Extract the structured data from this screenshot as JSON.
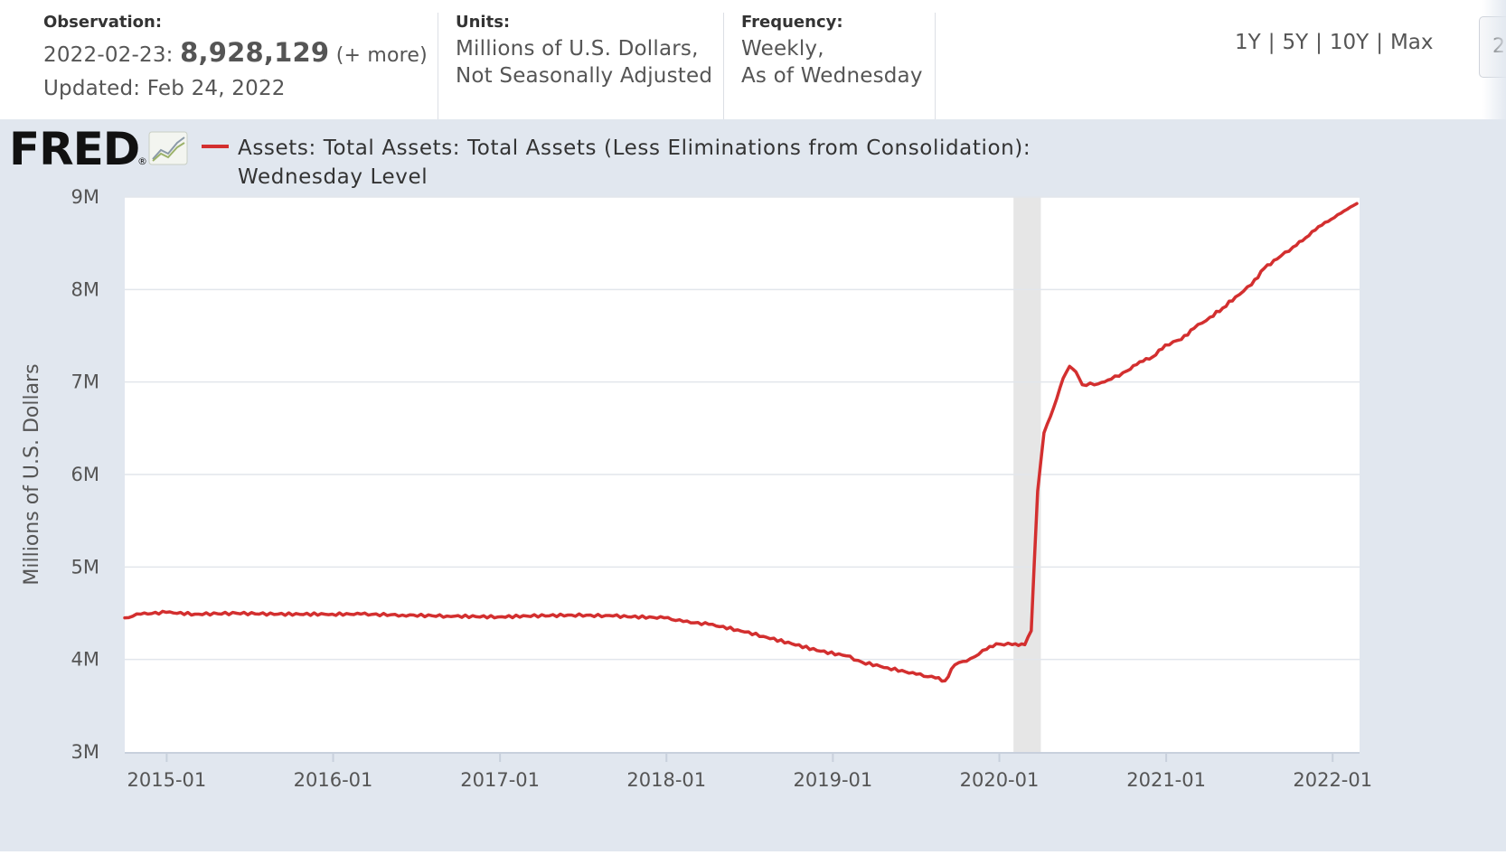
{
  "header": {
    "observation": {
      "label": "Observation:",
      "date_prefix": "2022-02-23:",
      "value": "8,928,129",
      "more": "(+ more)",
      "updated": "Updated: Feb 24, 2022"
    },
    "units": {
      "label": "Units:",
      "line1": "Millions of U.S. Dollars,",
      "line2": "Not Seasonally Adjusted"
    },
    "frequency": {
      "label": "Frequency:",
      "line1": "Weekly,",
      "line2": "As of Wednesday"
    },
    "ranges": [
      "1Y",
      "5Y",
      "10Y",
      "Max"
    ],
    "edge_button_text": "2"
  },
  "brand": {
    "logo_text": "FRED",
    "logo_icon": "chart-line-icon",
    "reg_mark": "®"
  },
  "colors": {
    "series": "#d32f2f",
    "chart_bg": "#e1e7ef",
    "plot_bg": "#ffffff",
    "recession": "#e6e6e6",
    "grid": "#e2e6ec"
  },
  "chart_data": {
    "type": "line",
    "title": "",
    "legend_text_line1": "Assets: Total Assets: Total Assets (Less Eliminations from Consolidation):",
    "legend_text_line2": "Wednesday Level",
    "ylabel": "Millions of U.S. Dollars",
    "xlabel": "",
    "xlim": [
      "2014-10-01",
      "2022-03-01"
    ],
    "ylim": [
      3,
      9
    ],
    "y_unit": "millions (M)",
    "y_ticks": [
      {
        "value": 3,
        "label": "3M"
      },
      {
        "value": 4,
        "label": "4M"
      },
      {
        "value": 5,
        "label": "5M"
      },
      {
        "value": 6,
        "label": "6M"
      },
      {
        "value": 7,
        "label": "7M"
      },
      {
        "value": 8,
        "label": "8M"
      },
      {
        "value": 9,
        "label": "9M"
      }
    ],
    "x_ticks": [
      {
        "date": "2015-01-01",
        "label": "2015-01"
      },
      {
        "date": "2016-01-01",
        "label": "2016-01"
      },
      {
        "date": "2017-01-01",
        "label": "2017-01"
      },
      {
        "date": "2018-01-01",
        "label": "2018-01"
      },
      {
        "date": "2019-01-01",
        "label": "2019-01"
      },
      {
        "date": "2020-01-01",
        "label": "2020-01"
      },
      {
        "date": "2021-01-01",
        "label": "2021-01"
      },
      {
        "date": "2022-01-01",
        "label": "2022-01"
      }
    ],
    "recession": {
      "start": "2020-02-01",
      "end": "2020-04-01"
    },
    "grid": true,
    "series": [
      {
        "name": "Assets: Total Assets: Total Assets (Less Eliminations from Consolidation): Wednesday Level",
        "points": [
          [
            "2014-10-01",
            4.45
          ],
          [
            "2014-11-05",
            4.49
          ],
          [
            "2014-12-31",
            4.51
          ],
          [
            "2015-03-04",
            4.49
          ],
          [
            "2015-06-03",
            4.5
          ],
          [
            "2015-09-02",
            4.49
          ],
          [
            "2015-12-30",
            4.49
          ],
          [
            "2016-03-02",
            4.49
          ],
          [
            "2016-06-01",
            4.48
          ],
          [
            "2016-09-07",
            4.47
          ],
          [
            "2016-12-28",
            4.46
          ],
          [
            "2017-03-01",
            4.47
          ],
          [
            "2017-06-07",
            4.48
          ],
          [
            "2017-09-06",
            4.47
          ],
          [
            "2017-12-27",
            4.45
          ],
          [
            "2018-02-07",
            4.41
          ],
          [
            "2018-04-04",
            4.38
          ],
          [
            "2018-06-06",
            4.32
          ],
          [
            "2018-08-01",
            4.25
          ],
          [
            "2018-10-03",
            4.17
          ],
          [
            "2018-12-05",
            4.09
          ],
          [
            "2019-01-30",
            4.04
          ],
          [
            "2019-03-06",
            3.97
          ],
          [
            "2019-05-01",
            3.91
          ],
          [
            "2019-07-03",
            3.84
          ],
          [
            "2019-08-14",
            3.8
          ],
          [
            "2019-09-04",
            3.77
          ],
          [
            "2019-09-25",
            3.94
          ],
          [
            "2019-10-30",
            4.01
          ],
          [
            "2019-12-04",
            4.11
          ],
          [
            "2019-12-25",
            4.17
          ],
          [
            "2020-01-29",
            4.16
          ],
          [
            "2020-02-26",
            4.16
          ],
          [
            "2020-03-11",
            4.31
          ],
          [
            "2020-03-25",
            5.82
          ],
          [
            "2020-04-08",
            6.45
          ],
          [
            "2020-04-29",
            6.72
          ],
          [
            "2020-05-20",
            7.04
          ],
          [
            "2020-06-03",
            7.17
          ],
          [
            "2020-06-17",
            7.11
          ],
          [
            "2020-07-01",
            6.97
          ],
          [
            "2020-08-05",
            6.98
          ],
          [
            "2020-09-02",
            7.03
          ],
          [
            "2020-10-07",
            7.12
          ],
          [
            "2020-11-04",
            7.22
          ],
          [
            "2020-12-02",
            7.27
          ],
          [
            "2020-12-30",
            7.4
          ],
          [
            "2021-02-03",
            7.46
          ],
          [
            "2021-03-03",
            7.58
          ],
          [
            "2021-04-07",
            7.7
          ],
          [
            "2021-05-05",
            7.8
          ],
          [
            "2021-06-02",
            7.92
          ],
          [
            "2021-07-07",
            8.05
          ],
          [
            "2021-08-04",
            8.23
          ],
          [
            "2021-09-01",
            8.33
          ],
          [
            "2021-10-06",
            8.46
          ],
          [
            "2021-11-03",
            8.56
          ],
          [
            "2021-12-01",
            8.68
          ],
          [
            "2021-12-29",
            8.76
          ],
          [
            "2022-01-26",
            8.85
          ],
          [
            "2022-02-23",
            8.93
          ]
        ]
      }
    ]
  }
}
